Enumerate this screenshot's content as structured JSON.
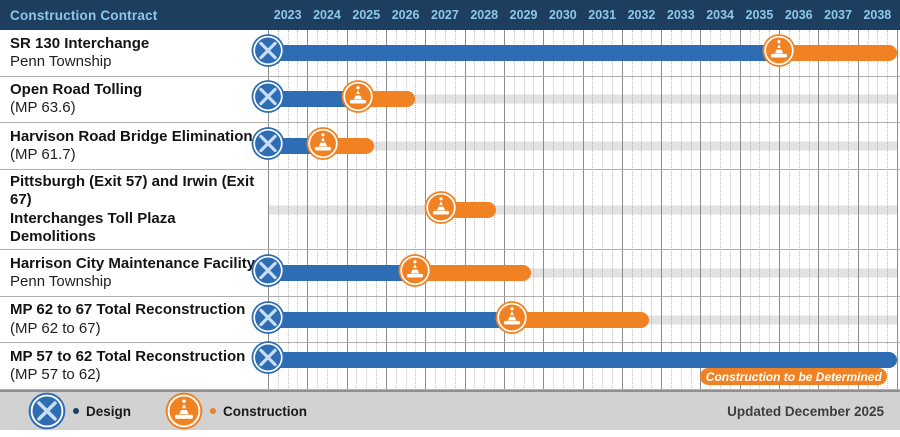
{
  "header": {
    "title": "Construction Contract",
    "years": [
      "2023",
      "2024",
      "2025",
      "2026",
      "2027",
      "2028",
      "2029",
      "2030",
      "2031",
      "2032",
      "2033",
      "2034",
      "2035",
      "2036",
      "2037",
      "2038"
    ]
  },
  "chart_data": {
    "type": "bar",
    "variant": "gantt",
    "title": "Construction Contract",
    "x_range": [
      2023,
      2039
    ],
    "x_ticks": [
      2023,
      2024,
      2025,
      2026,
      2027,
      2028,
      2029,
      2030,
      2031,
      2032,
      2033,
      2034,
      2035,
      2036,
      2037,
      2038
    ],
    "quarter_gridlines": true,
    "rows": [
      {
        "title": "SR 130 Interchange",
        "subtitle": "Penn Township",
        "design": [
          2023.0,
          2036.0
        ],
        "construction": [
          2036.0,
          2039.0
        ]
      },
      {
        "title": "Open Road Tolling",
        "subtitle": "(MP 63.6)",
        "design": [
          2023.0,
          2025.3
        ],
        "construction": [
          2025.3,
          2026.75
        ]
      },
      {
        "title": "Harvison Road Bridge Elimination",
        "subtitle": "(MP 61.7)",
        "design": [
          2023.0,
          2024.4
        ],
        "construction": [
          2024.4,
          2025.7
        ]
      },
      {
        "title": "Pittsburgh (Exit 57) and Irwin (Exit 67)",
        "title2": "Interchanges Toll Plaza Demolitions",
        "design": null,
        "construction": [
          2027.4,
          2028.8
        ]
      },
      {
        "title": "Harrison City Maintenance Facility",
        "subtitle": "Penn Township",
        "design": [
          2023.0,
          2026.75
        ],
        "construction": [
          2026.75,
          2029.7
        ]
      },
      {
        "title": "MP 62 to 67 Total Reconstruction",
        "subtitle": "(MP 62 to 67)",
        "design": [
          2023.0,
          2029.2
        ],
        "construction": [
          2029.2,
          2032.7
        ]
      },
      {
        "title": "MP 57 to 62 Total Reconstruction",
        "subtitle": "(MP 57 to 62)",
        "design": [
          2023.0,
          2039.0
        ],
        "construction": null,
        "note": "Construction to be Determined",
        "note_span": [
          2034.0,
          2038.75
        ]
      }
    ]
  },
  "legend": {
    "design_label": "Design",
    "construction_label": "Construction"
  },
  "footer": {
    "updated": "Updated December 2025"
  },
  "colors": {
    "header_navy": "#1d3e5e",
    "year_text": "#8fc7e8",
    "design_blue": "#2e6db4",
    "construction_orange": "#f08223",
    "tool_glyph_blue": "#c9def2",
    "track_gray": "#dcdcdc"
  }
}
